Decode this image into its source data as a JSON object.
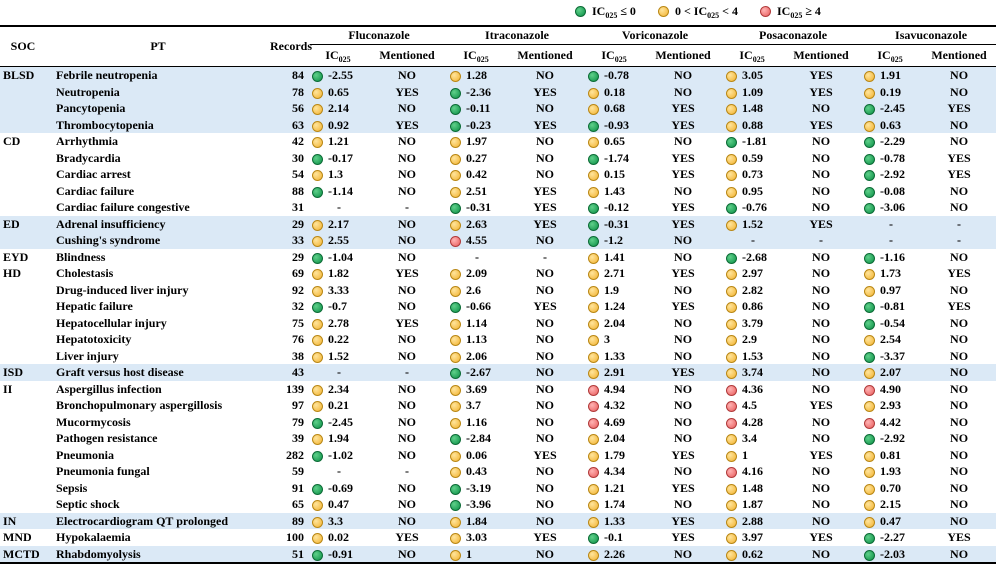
{
  "legend": [
    {
      "color": "g",
      "text": "IC",
      "sub": "025",
      "rest": " ≤ 0"
    },
    {
      "color": "y",
      "text": "0 < IC",
      "sub": "025",
      "rest": " < 4"
    },
    {
      "color": "r",
      "text": "IC",
      "sub": "025",
      "rest": " ≥ 4"
    }
  ],
  "headers": {
    "soc": "SOC",
    "pt": "PT",
    "records": "Records",
    "drugs": [
      "Fluconazole",
      "Itraconazole",
      "Voriconazole",
      "Posaconazole",
      "Isavuconazole"
    ],
    "ic": "IC",
    "ic_sub": "025",
    "mentioned": "Mentioned"
  },
  "rows": [
    {
      "soc": "BLSD",
      "pt": "Febrile neutropenia",
      "rec": "84",
      "shade": true,
      "d": [
        [
          "g",
          "-2.55",
          "NO"
        ],
        [
          "y",
          "1.28",
          "NO"
        ],
        [
          "g",
          "-0.78",
          "NO"
        ],
        [
          "y",
          "3.05",
          "YES"
        ],
        [
          "y",
          "1.91",
          "NO"
        ]
      ]
    },
    {
      "soc": "",
      "pt": "Neutropenia",
      "rec": "78",
      "shade": true,
      "d": [
        [
          "y",
          "0.65",
          "YES"
        ],
        [
          "g",
          "-2.36",
          "YES"
        ],
        [
          "y",
          "0.18",
          "NO"
        ],
        [
          "y",
          "1.09",
          "YES"
        ],
        [
          "y",
          "0.19",
          "NO"
        ]
      ]
    },
    {
      "soc": "",
      "pt": "Pancytopenia",
      "rec": "56",
      "shade": true,
      "d": [
        [
          "y",
          "2.14",
          "NO"
        ],
        [
          "g",
          "-0.11",
          "NO"
        ],
        [
          "y",
          "0.68",
          "YES"
        ],
        [
          "y",
          "1.48",
          "NO"
        ],
        [
          "g",
          "-2.45",
          "YES"
        ]
      ]
    },
    {
      "soc": "",
      "pt": "Thrombocytopenia",
      "rec": "63",
      "shade": true,
      "d": [
        [
          "y",
          "0.92",
          "YES"
        ],
        [
          "g",
          "-0.23",
          "YES"
        ],
        [
          "g",
          "-0.93",
          "YES"
        ],
        [
          "y",
          "0.88",
          "YES"
        ],
        [
          "y",
          "0.63",
          "NO"
        ]
      ]
    },
    {
      "soc": "CD",
      "pt": "Arrhythmia",
      "rec": "42",
      "shade": false,
      "d": [
        [
          "y",
          "1.21",
          "NO"
        ],
        [
          "y",
          "1.97",
          "NO"
        ],
        [
          "y",
          "0.65",
          "NO"
        ],
        [
          "g",
          "-1.81",
          "NO"
        ],
        [
          "g",
          "-2.29",
          "NO"
        ]
      ]
    },
    {
      "soc": "",
      "pt": "Bradycardia",
      "rec": "30",
      "shade": false,
      "d": [
        [
          "g",
          "-0.17",
          "NO"
        ],
        [
          "y",
          "0.27",
          "NO"
        ],
        [
          "g",
          "-1.74",
          "YES"
        ],
        [
          "y",
          "0.59",
          "NO"
        ],
        [
          "g",
          "-0.78",
          "YES"
        ]
      ]
    },
    {
      "soc": "",
      "pt": "Cardiac arrest",
      "rec": "54",
      "shade": false,
      "d": [
        [
          "y",
          "1.3",
          "NO"
        ],
        [
          "y",
          "0.42",
          "NO"
        ],
        [
          "y",
          "0.15",
          "YES"
        ],
        [
          "y",
          "0.73",
          "NO"
        ],
        [
          "g",
          "-2.92",
          "YES"
        ]
      ]
    },
    {
      "soc": "",
      "pt": "Cardiac failure",
      "rec": "88",
      "shade": false,
      "d": [
        [
          "g",
          "-1.14",
          "NO"
        ],
        [
          "y",
          "2.51",
          "YES"
        ],
        [
          "y",
          "1.43",
          "NO"
        ],
        [
          "y",
          "0.95",
          "NO"
        ],
        [
          "g",
          "-0.08",
          "NO"
        ]
      ]
    },
    {
      "soc": "",
      "pt": "Cardiac failure congestive",
      "rec": "31",
      "shade": false,
      "d": [
        [
          "",
          "-",
          "-"
        ],
        [
          "g",
          "-0.31",
          "YES"
        ],
        [
          "g",
          "-0.12",
          "YES"
        ],
        [
          "g",
          "-0.76",
          "NO"
        ],
        [
          "g",
          "-3.06",
          "NO"
        ]
      ]
    },
    {
      "soc": "ED",
      "pt": "Adrenal insufficiency",
      "rec": "29",
      "shade": true,
      "d": [
        [
          "y",
          "2.17",
          "NO"
        ],
        [
          "y",
          "2.63",
          "YES"
        ],
        [
          "g",
          "-0.31",
          "YES"
        ],
        [
          "y",
          "1.52",
          "YES"
        ],
        [
          "",
          "-",
          "-"
        ]
      ]
    },
    {
      "soc": "",
      "pt": "Cushing's syndrome",
      "rec": "33",
      "shade": true,
      "d": [
        [
          "y",
          "2.55",
          "NO"
        ],
        [
          "r",
          "4.55",
          "NO"
        ],
        [
          "g",
          "-1.2",
          "NO"
        ],
        [
          "",
          "-",
          "-"
        ],
        [
          "",
          "-",
          "-"
        ]
      ]
    },
    {
      "soc": "EYD",
      "pt": "Blindness",
      "rec": "29",
      "shade": false,
      "d": [
        [
          "g",
          "-1.04",
          "NO"
        ],
        [
          "",
          "-",
          "-"
        ],
        [
          "y",
          "1.41",
          "NO"
        ],
        [
          "g",
          "-2.68",
          "NO"
        ],
        [
          "g",
          "-1.16",
          "NO"
        ]
      ]
    },
    {
      "soc": "HD",
      "pt": "Cholestasis",
      "rec": "69",
      "shade": false,
      "d": [
        [
          "y",
          "1.82",
          "YES"
        ],
        [
          "y",
          "2.09",
          "NO"
        ],
        [
          "y",
          "2.71",
          "YES"
        ],
        [
          "y",
          "2.97",
          "NO"
        ],
        [
          "y",
          "1.73",
          "YES"
        ]
      ]
    },
    {
      "soc": "",
      "pt": "Drug-induced liver injury",
      "rec": "92",
      "shade": false,
      "d": [
        [
          "y",
          "3.33",
          "NO"
        ],
        [
          "y",
          "2.6",
          "NO"
        ],
        [
          "y",
          "1.9",
          "NO"
        ],
        [
          "y",
          "2.82",
          "NO"
        ],
        [
          "y",
          "0.97",
          "NO"
        ]
      ]
    },
    {
      "soc": "",
      "pt": "Hepatic failure",
      "rec": "32",
      "shade": false,
      "d": [
        [
          "g",
          "-0.7",
          "NO"
        ],
        [
          "g",
          "-0.66",
          "YES"
        ],
        [
          "y",
          "1.24",
          "YES"
        ],
        [
          "y",
          "0.86",
          "NO"
        ],
        [
          "g",
          "-0.81",
          "YES"
        ]
      ]
    },
    {
      "soc": "",
      "pt": "Hepatocellular injury",
      "rec": "75",
      "shade": false,
      "d": [
        [
          "y",
          "2.78",
          "YES"
        ],
        [
          "y",
          "1.14",
          "NO"
        ],
        [
          "y",
          "2.04",
          "NO"
        ],
        [
          "y",
          "3.79",
          "NO"
        ],
        [
          "g",
          "-0.54",
          "NO"
        ]
      ]
    },
    {
      "soc": "",
      "pt": "Hepatotoxicity",
      "rec": "76",
      "shade": false,
      "d": [
        [
          "y",
          "0.22",
          "NO"
        ],
        [
          "y",
          "1.13",
          "NO"
        ],
        [
          "y",
          "3",
          "NO"
        ],
        [
          "y",
          "2.9",
          "NO"
        ],
        [
          "y",
          "2.54",
          "NO"
        ]
      ]
    },
    {
      "soc": "",
      "pt": "Liver injury",
      "rec": "38",
      "shade": false,
      "d": [
        [
          "y",
          "1.52",
          "NO"
        ],
        [
          "y",
          "2.06",
          "NO"
        ],
        [
          "y",
          "1.33",
          "NO"
        ],
        [
          "y",
          "1.53",
          "NO"
        ],
        [
          "g",
          "-3.37",
          "NO"
        ]
      ]
    },
    {
      "soc": "ISD",
      "pt": "Graft versus host disease",
      "rec": "43",
      "shade": true,
      "d": [
        [
          "",
          "-",
          "-"
        ],
        [
          "g",
          "-2.67",
          "NO"
        ],
        [
          "y",
          "2.91",
          "YES"
        ],
        [
          "y",
          "3.74",
          "NO"
        ],
        [
          "y",
          "2.07",
          "NO"
        ]
      ]
    },
    {
      "soc": "II",
      "pt": "Aspergillus infection",
      "rec": "139",
      "shade": false,
      "d": [
        [
          "y",
          "2.34",
          "NO"
        ],
        [
          "y",
          "3.69",
          "NO"
        ],
        [
          "r",
          "4.94",
          "NO"
        ],
        [
          "r",
          "4.36",
          "NO"
        ],
        [
          "r",
          "4.90",
          "NO"
        ]
      ]
    },
    {
      "soc": "",
      "pt": "Bronchopulmonary aspergillosis",
      "rec": "97",
      "shade": false,
      "d": [
        [
          "y",
          "0.21",
          "NO"
        ],
        [
          "y",
          "3.7",
          "NO"
        ],
        [
          "r",
          "4.32",
          "NO"
        ],
        [
          "r",
          "4.5",
          "YES"
        ],
        [
          "y",
          "2.93",
          "NO"
        ]
      ]
    },
    {
      "soc": "",
      "pt": "Mucormycosis",
      "rec": "79",
      "shade": false,
      "d": [
        [
          "g",
          "-2.45",
          "NO"
        ],
        [
          "y",
          "1.16",
          "NO"
        ],
        [
          "r",
          "4.69",
          "NO"
        ],
        [
          "r",
          "4.28",
          "NO"
        ],
        [
          "r",
          "4.42",
          "NO"
        ]
      ]
    },
    {
      "soc": "",
      "pt": "Pathogen resistance",
      "rec": "39",
      "shade": false,
      "d": [
        [
          "y",
          "1.94",
          "NO"
        ],
        [
          "g",
          "-2.84",
          "NO"
        ],
        [
          "y",
          "2.04",
          "NO"
        ],
        [
          "y",
          "3.4",
          "NO"
        ],
        [
          "g",
          "-2.92",
          "NO"
        ]
      ]
    },
    {
      "soc": "",
      "pt": "Pneumonia",
      "rec": "282",
      "shade": false,
      "d": [
        [
          "g",
          "-1.02",
          "NO"
        ],
        [
          "y",
          "0.06",
          "YES"
        ],
        [
          "y",
          "1.79",
          "YES"
        ],
        [
          "y",
          "1",
          "YES"
        ],
        [
          "y",
          "0.81",
          "NO"
        ]
      ]
    },
    {
      "soc": "",
      "pt": "Pneumonia fungal",
      "rec": "59",
      "shade": false,
      "d": [
        [
          "",
          "-",
          "-"
        ],
        [
          "y",
          "0.43",
          "NO"
        ],
        [
          "r",
          "4.34",
          "NO"
        ],
        [
          "r",
          "4.16",
          "NO"
        ],
        [
          "y",
          "1.93",
          "NO"
        ]
      ]
    },
    {
      "soc": "",
      "pt": "Sepsis",
      "rec": "91",
      "shade": false,
      "d": [
        [
          "g",
          "-0.69",
          "NO"
        ],
        [
          "g",
          "-3.19",
          "NO"
        ],
        [
          "y",
          "1.21",
          "YES"
        ],
        [
          "y",
          "1.48",
          "NO"
        ],
        [
          "y",
          "0.70",
          "NO"
        ]
      ]
    },
    {
      "soc": "",
      "pt": "Septic shock",
      "rec": "65",
      "shade": false,
      "d": [
        [
          "y",
          "0.47",
          "NO"
        ],
        [
          "g",
          "-3.96",
          "NO"
        ],
        [
          "y",
          "1.74",
          "NO"
        ],
        [
          "y",
          "1.87",
          "NO"
        ],
        [
          "y",
          "2.15",
          "NO"
        ]
      ]
    },
    {
      "soc": "IN",
      "pt": "Electrocardiogram QT prolonged",
      "rec": "89",
      "shade": true,
      "d": [
        [
          "y",
          "3.3",
          "NO"
        ],
        [
          "y",
          "1.84",
          "NO"
        ],
        [
          "y",
          "1.33",
          "YES"
        ],
        [
          "y",
          "2.88",
          "NO"
        ],
        [
          "y",
          "0.47",
          "NO"
        ]
      ]
    },
    {
      "soc": "MND",
      "pt": "Hypokalaemia",
      "rec": "100",
      "shade": false,
      "d": [
        [
          "y",
          "0.02",
          "YES"
        ],
        [
          "y",
          "3.03",
          "YES"
        ],
        [
          "g",
          "-0.1",
          "YES"
        ],
        [
          "y",
          "3.97",
          "YES"
        ],
        [
          "g",
          "-2.27",
          "YES"
        ]
      ]
    },
    {
      "soc": "MCTD",
      "pt": "Rhabdomyolysis",
      "rec": "51",
      "shade": true,
      "d": [
        [
          "g",
          "-0.91",
          "NO"
        ],
        [
          "y",
          "1",
          "NO"
        ],
        [
          "y",
          "2.26",
          "NO"
        ],
        [
          "y",
          "0.62",
          "NO"
        ],
        [
          "g",
          "-2.03",
          "NO"
        ]
      ]
    }
  ]
}
